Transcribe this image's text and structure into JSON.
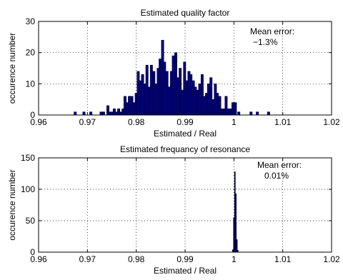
{
  "chart_data": [
    {
      "type": "bar",
      "title": "Estimated quality factor",
      "xlabel": "Estimated / Real",
      "ylabel": "occurence number",
      "xlim": [
        0.96,
        1.02
      ],
      "ylim": [
        0,
        30
      ],
      "xticks": [
        "0.96",
        "0.97",
        "0.98",
        "0.99",
        "1",
        "1.01",
        "1.02"
      ],
      "yticks": [
        "0",
        "10",
        "20",
        "30"
      ],
      "grid": true,
      "bar_color": "#000080",
      "annotation": [
        "Mean error:",
        "−1.3%"
      ],
      "bin_width": 0.0005,
      "x": [
        0.9675,
        0.9693,
        0.9707,
        0.9728,
        0.9733,
        0.9742,
        0.9746,
        0.975,
        0.9755,
        0.9759,
        0.9764,
        0.9768,
        0.9773,
        0.9777,
        0.9782,
        0.9786,
        0.9791,
        0.9795,
        0.98,
        0.9804,
        0.9809,
        0.9813,
        0.9818,
        0.9822,
        0.9827,
        0.9831,
        0.9836,
        0.984,
        0.9845,
        0.9849,
        0.9854,
        0.9858,
        0.9863,
        0.9867,
        0.9872,
        0.9876,
        0.9881,
        0.9885,
        0.989,
        0.9894,
        0.9899,
        0.9903,
        0.9908,
        0.9912,
        0.9917,
        0.9921,
        0.9926,
        0.993,
        0.9935,
        0.9939,
        0.9944,
        0.9948,
        0.9953,
        0.9957,
        0.9962,
        0.9966,
        0.9971,
        0.9975,
        0.998,
        0.9984,
        0.9989,
        0.9993,
        0.9998,
        1.0003,
        1.001,
        1.0035,
        1.0048,
        1.0071
      ],
      "values": [
        1,
        1,
        1,
        1,
        1,
        3,
        1,
        1,
        2,
        1,
        2,
        1,
        2,
        6,
        4,
        6,
        6,
        4,
        7,
        14,
        11,
        13,
        10,
        16,
        9,
        16,
        14,
        10,
        15,
        18,
        24,
        17,
        14,
        9,
        14,
        19,
        20,
        12,
        15,
        8,
        17,
        11,
        14,
        13,
        11,
        9,
        8,
        10,
        13,
        6,
        7,
        10,
        12,
        5,
        10,
        7,
        6,
        2,
        2,
        6,
        2,
        2,
        4,
        4,
        1,
        1,
        1,
        1
      ]
    },
    {
      "type": "bar",
      "title": "Estimated frequancy of resonance",
      "xlabel": "Estimated / Real",
      "ylabel": "occurence number",
      "xlim": [
        0.96,
        1.02
      ],
      "ylim": [
        0,
        150
      ],
      "xticks": [
        "0.96",
        "0.97",
        "0.98",
        "0.99",
        "1",
        "1.01",
        "1.02"
      ],
      "yticks": [
        "0",
        "50",
        "100",
        "150"
      ],
      "grid": true,
      "bar_color": "#000080",
      "annotation": [
        "Mean error:",
        "0.01%"
      ],
      "bin_width": 0.0002,
      "x": [
        0.9998,
        1.0,
        1.0002,
        1.0004,
        1.0006,
        1.0008
      ],
      "values": [
        4,
        55,
        128,
        93,
        20,
        3
      ]
    }
  ]
}
